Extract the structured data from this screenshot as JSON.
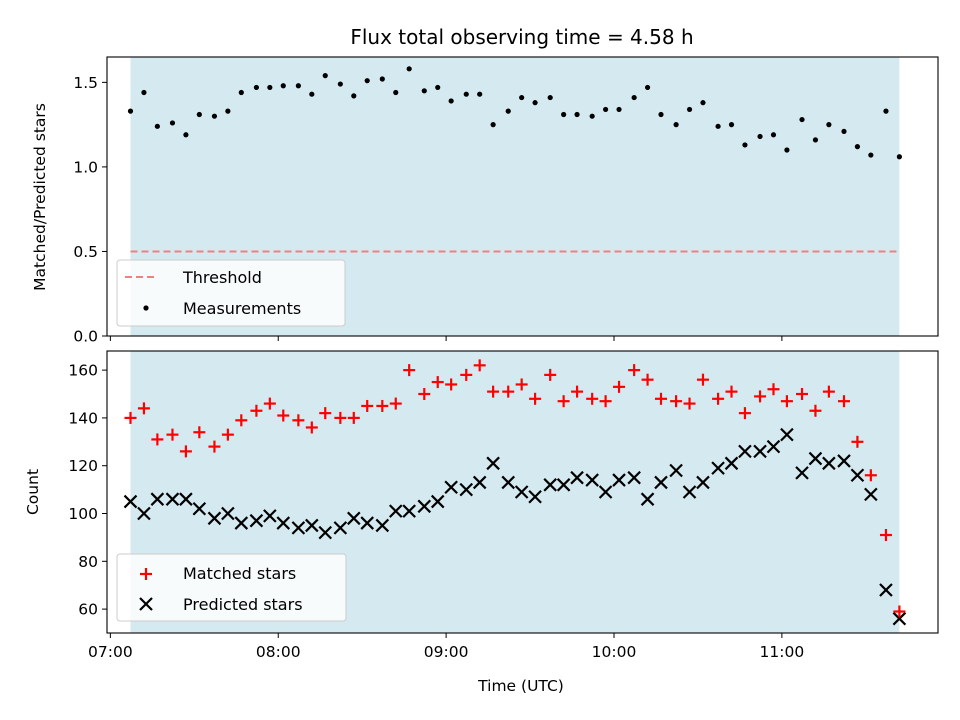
{
  "chart_data": [
    {
      "type": "scatter",
      "title": "Flux total observing time = 4.58 h",
      "xlabel": "",
      "ylabel": "Matched/Predicted stars",
      "xlim": [
        6.98,
        11.93
      ],
      "ylim": [
        0,
        1.65
      ],
      "yticks": [
        0.0,
        0.5,
        1.0,
        1.5
      ],
      "ytick_labels": [
        "0.0",
        "0.5",
        "1.0",
        "1.5"
      ],
      "shaded_span": [
        7.12,
        11.7
      ],
      "shade_color": "#d4eaf0",
      "threshold": {
        "name": "Threshold",
        "value": 0.5,
        "color": "#f08080",
        "style": "dashed"
      },
      "series": [
        {
          "name": "Measurements",
          "marker": "dot",
          "color": "#000000",
          "x": [
            7.12,
            7.2,
            7.28,
            7.37,
            7.45,
            7.53,
            7.62,
            7.7,
            7.78,
            7.87,
            7.95,
            8.03,
            8.12,
            8.2,
            8.28,
            8.37,
            8.45,
            8.53,
            8.62,
            8.7,
            8.78,
            8.87,
            8.95,
            9.03,
            9.12,
            9.2,
            9.28,
            9.37,
            9.45,
            9.53,
            9.62,
            9.7,
            9.78,
            9.87,
            9.95,
            10.03,
            10.12,
            10.2,
            10.28,
            10.37,
            10.45,
            10.53,
            10.62,
            10.7,
            10.78,
            10.87,
            10.95,
            11.03,
            11.12,
            11.2,
            11.28,
            11.37,
            11.45,
            11.53,
            11.62,
            11.7
          ],
          "y": [
            1.33,
            1.44,
            1.24,
            1.26,
            1.19,
            1.31,
            1.3,
            1.33,
            1.44,
            1.47,
            1.47,
            1.48,
            1.48,
            1.43,
            1.54,
            1.49,
            1.42,
            1.51,
            1.52,
            1.44,
            1.58,
            1.45,
            1.47,
            1.39,
            1.43,
            1.43,
            1.25,
            1.33,
            1.41,
            1.38,
            1.41,
            1.31,
            1.31,
            1.3,
            1.34,
            1.34,
            1.41,
            1.47,
            1.31,
            1.25,
            1.34,
            1.38,
            1.24,
            1.25,
            1.13,
            1.18,
            1.19,
            1.1,
            1.28,
            1.16,
            1.25,
            1.21,
            1.12,
            1.07,
            1.33,
            1.06
          ]
        }
      ],
      "legend": {
        "placement": "lower-left",
        "entries": [
          "Threshold",
          "Measurements"
        ]
      }
    },
    {
      "type": "scatter",
      "title": "",
      "xlabel": "Time (UTC)",
      "ylabel": "Count",
      "xlim": [
        6.98,
        11.93
      ],
      "ylim": [
        50,
        168
      ],
      "yticks": [
        60,
        80,
        100,
        120,
        140,
        160
      ],
      "ytick_labels": [
        "60",
        "80",
        "100",
        "120",
        "140",
        "160"
      ],
      "xticks": [
        7,
        8,
        9,
        10,
        11
      ],
      "xtick_labels": [
        "07:00",
        "08:00",
        "09:00",
        "10:00",
        "11:00"
      ],
      "shaded_span": [
        7.12,
        11.7
      ],
      "shade_color": "#d4eaf0",
      "x": [
        7.12,
        7.2,
        7.28,
        7.37,
        7.45,
        7.53,
        7.62,
        7.7,
        7.78,
        7.87,
        7.95,
        8.03,
        8.12,
        8.2,
        8.28,
        8.37,
        8.45,
        8.53,
        8.62,
        8.7,
        8.78,
        8.87,
        8.95,
        9.03,
        9.12,
        9.2,
        9.28,
        9.37,
        9.45,
        9.53,
        9.62,
        9.7,
        9.78,
        9.87,
        9.95,
        10.03,
        10.12,
        10.2,
        10.28,
        10.37,
        10.45,
        10.53,
        10.62,
        10.7,
        10.78,
        10.87,
        10.95,
        11.03,
        11.12,
        11.2,
        11.28,
        11.37,
        11.45,
        11.53,
        11.62,
        11.7
      ],
      "series": [
        {
          "name": "Matched stars",
          "marker": "plus",
          "color": "#ff0000",
          "values": [
            140,
            144,
            131,
            133,
            126,
            134,
            128,
            133,
            139,
            143,
            146,
            141,
            139,
            136,
            142,
            140,
            140,
            145,
            145,
            146,
            160,
            150,
            155,
            154,
            158,
            162,
            151,
            151,
            154,
            148,
            158,
            147,
            151,
            148,
            147,
            153,
            160,
            156,
            148,
            147,
            146,
            156,
            148,
            151,
            142,
            149,
            152,
            147,
            150,
            143,
            151,
            147,
            130,
            116,
            91,
            59
          ]
        },
        {
          "name": "Predicted stars",
          "marker": "x",
          "color": "#000000",
          "values": [
            105,
            100,
            106,
            106,
            106,
            102,
            98,
            100,
            96,
            97,
            99,
            96,
            94,
            95,
            92,
            94,
            98,
            96,
            95,
            101,
            101,
            103,
            105,
            111,
            110,
            113,
            121,
            113,
            109,
            107,
            112,
            112,
            115,
            114,
            109,
            114,
            115,
            106,
            113,
            118,
            109,
            113,
            119,
            121,
            126,
            126,
            128,
            133,
            117,
            123,
            121,
            122,
            116,
            108,
            68,
            56
          ]
        }
      ],
      "legend": {
        "placement": "lower-left",
        "entries": [
          "Matched stars",
          "Predicted stars"
        ]
      }
    }
  ]
}
